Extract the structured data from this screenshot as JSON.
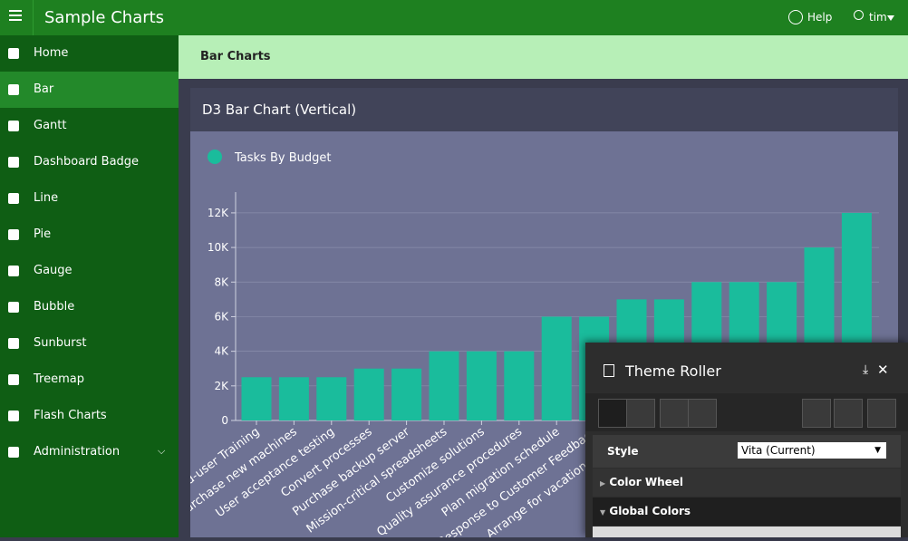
{
  "header": {
    "app_title": "Sample Charts",
    "help": "Help",
    "user": "tim"
  },
  "nav": [
    "Home",
    "Bar",
    "Gantt",
    "Dashboard Badge",
    "Line",
    "Pie",
    "Gauge",
    "Bubble",
    "Sunburst",
    "Treemap",
    "Flash Charts",
    "Administration"
  ],
  "breadcrumb": "Bar Charts",
  "region_title": "D3 Bar Chart (Vertical)",
  "chart_data": {
    "type": "bar",
    "categories": [
      "End-user Training",
      "Purchase new machines",
      "User acceptance testing",
      "Convert processes",
      "Purchase backup server",
      "Mission-critical spreadsheets",
      "Customize solutions",
      "Quality assurance procedures",
      "Plan migration schedule",
      "Response to Customer Feedback",
      "Arrange for vacation coverage",
      null,
      null,
      null,
      null,
      null,
      null
    ],
    "series": [
      {
        "name": "Tasks By Budget",
        "color": "#1abc9c",
        "values": [
          2500,
          2500,
          2500,
          3000,
          3000,
          4000,
          4000,
          4000,
          6000,
          6000,
          7000,
          7000,
          8000,
          8000,
          8000,
          10000,
          12000
        ]
      }
    ],
    "ylim": [
      0,
      13200
    ],
    "yticks": [
      0,
      {
        "value": 2000,
        "label": "2K"
      },
      {
        "value": 4000,
        "label": "4K"
      },
      {
        "value": 6000,
        "label": "6K"
      },
      {
        "value": 8000,
        "label": "8K"
      },
      {
        "value": 10000,
        "label": "10K"
      },
      {
        "value": 12000,
        "label": "12K"
      }
    ],
    "grid": true
  },
  "theme_roller": {
    "title": "Theme Roller",
    "style_label": "Style",
    "style_value": "Vita (Current)",
    "sections": [
      "Color Wheel",
      "Global Colors"
    ]
  }
}
